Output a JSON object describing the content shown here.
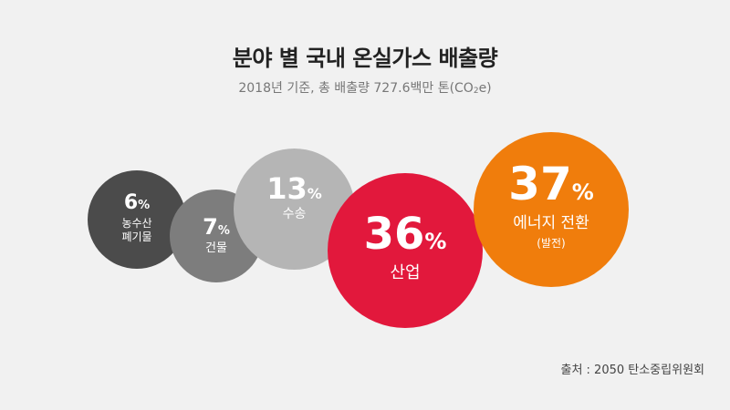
{
  "title": "분야 별 국내 온실가스 배출량",
  "subtitle_main": "2018년 기준, 총 배출량 727.6백만 톤(CO",
  "subtitle_sub": "2",
  "subtitle_end": "e)",
  "source": "출처 : 2050 탄소중립위원회",
  "chart_data": {
    "type": "bubble",
    "title": "분야 별 국내 온실가스 배출량",
    "subtitle": "2018년 기준, 총 배출량 727.6백만 톤(CO₂e)",
    "unit": "%",
    "categories": [
      "농수산 폐기물",
      "건물",
      "수송",
      "산업",
      "에너지 전환"
    ],
    "values": [
      6,
      7,
      13,
      36,
      37
    ],
    "items": [
      {
        "id": "agri",
        "value": "6",
        "unit": "%",
        "label": "농수산\n폐기물",
        "note": "",
        "color": "#4b4b4b"
      },
      {
        "id": "bld",
        "value": "7",
        "unit": "%",
        "label": "건물",
        "note": "",
        "color": "#7d7d7d"
      },
      {
        "id": "trans",
        "value": "13",
        "unit": "%",
        "label": "수송",
        "note": "",
        "color": "#b5b5b5"
      },
      {
        "id": "ind",
        "value": "36",
        "unit": "%",
        "label": "산업",
        "note": "",
        "color": "#e2183c"
      },
      {
        "id": "nrg",
        "value": "37",
        "unit": "%",
        "label": "에너지 전환",
        "note": "(발전)",
        "color": "#f07d0c"
      }
    ]
  }
}
